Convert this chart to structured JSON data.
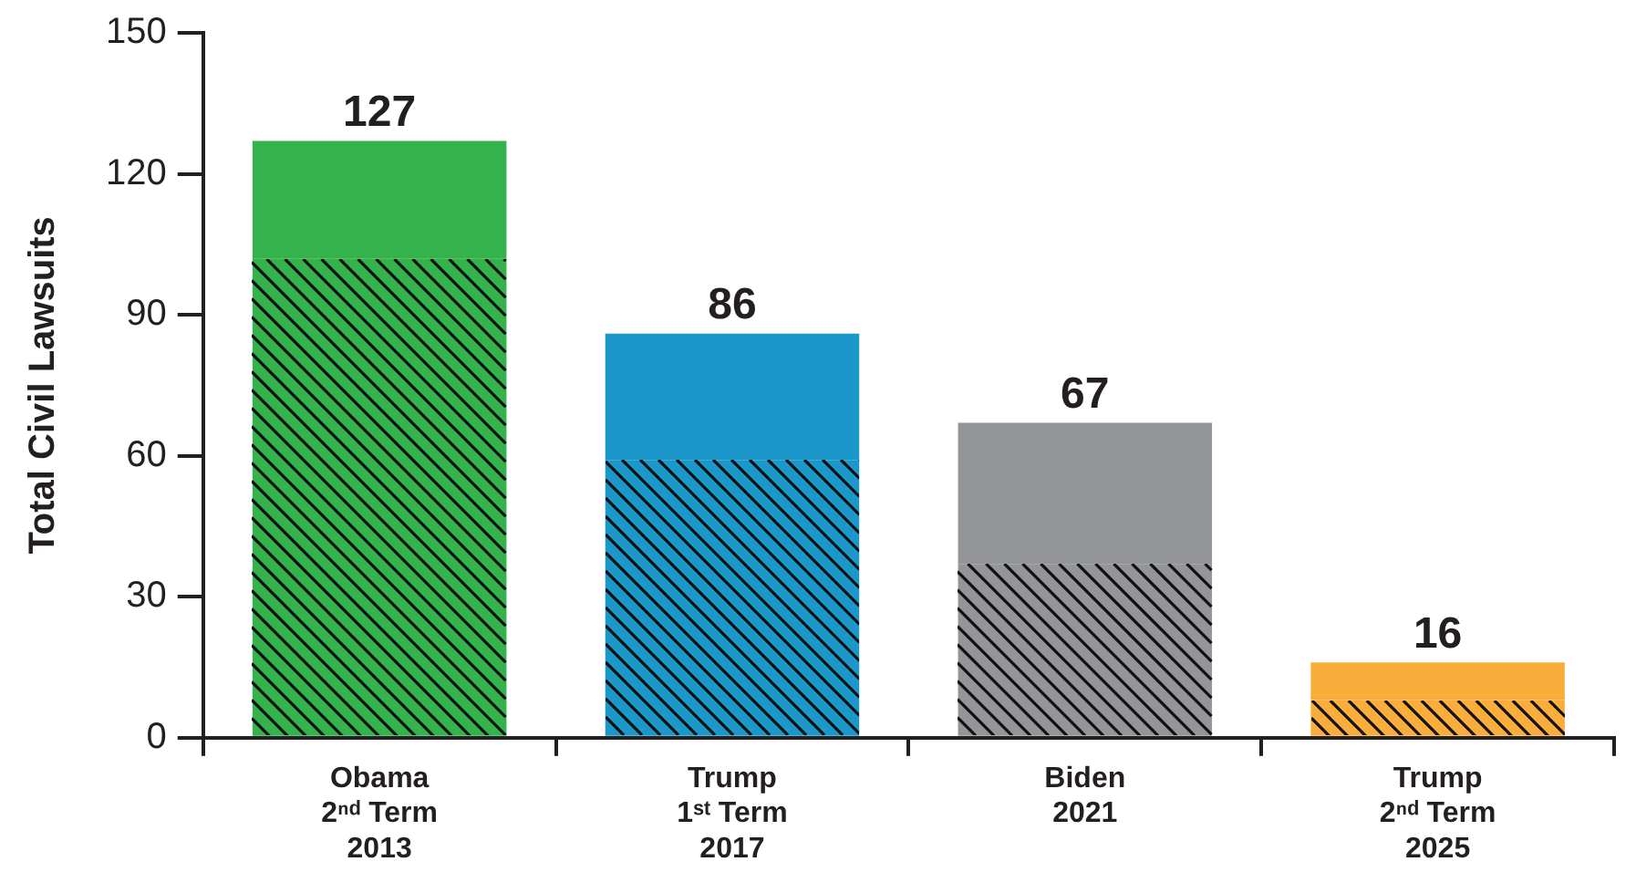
{
  "chart_data": {
    "type": "bar",
    "stacked": true,
    "ylabel": "Total Civil Lawsuits",
    "categories": [
      "Obama\n2ⁿᵈ Term\n2013",
      "Trump\n1ˢᵗ Term\n2017",
      "Biden\n2021",
      "Trump\n2ⁿᵈ Term\n2025"
    ],
    "series": [
      {
        "colors": [
          "#34b24c",
          "#1b98c9",
          "#939598",
          "#f9ae3b"
        ],
        "values": [
          102,
          59,
          37,
          8
        ]
      },
      {
        "colors": [
          "#34b24c",
          "#1b98c9",
          "#939598",
          "#f9ae3b"
        ],
        "values": [
          25,
          27,
          30,
          8
        ]
      }
    ],
    "totals": [
      "127",
      "86",
      "67",
      "16"
    ],
    "ylim": [
      0,
      150
    ],
    "yticks": [
      0,
      30,
      60,
      90,
      120,
      150
    ],
    "grid": false,
    "legend": false
  }
}
